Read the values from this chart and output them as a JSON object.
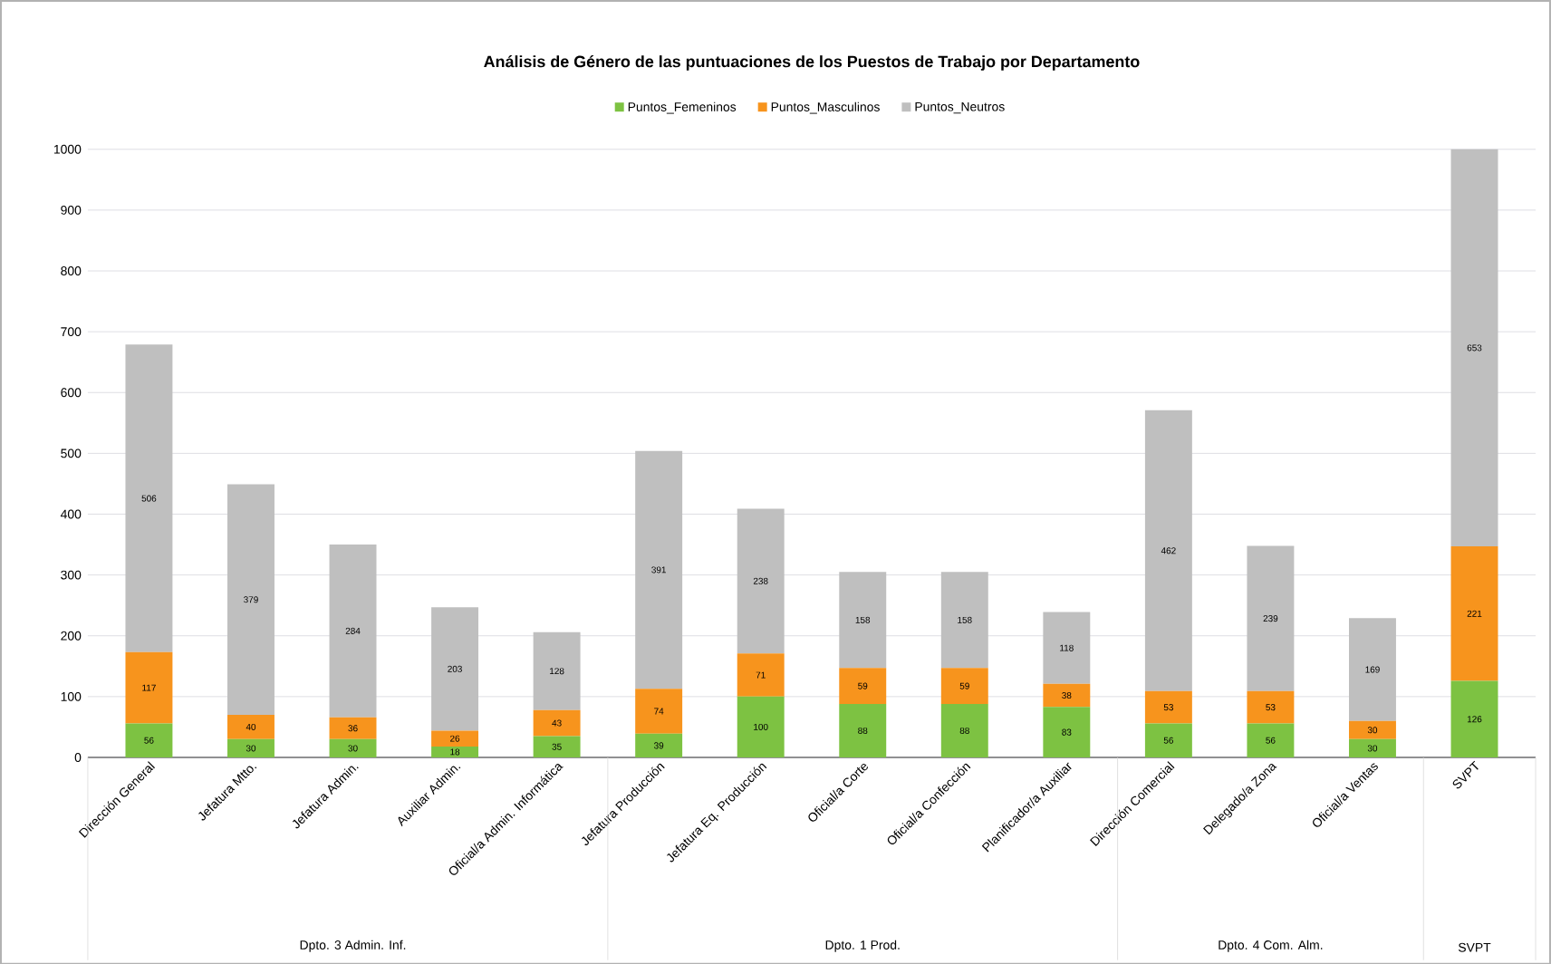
{
  "chart_data": {
    "type": "bar",
    "stacked": true,
    "title": "Análisis de Género de las puntuaciones de los Puestos de Trabajo por Departamento",
    "categories": [
      "Dirección General",
      "Jefatura Mtto.",
      "Jefatura Admin.",
      "Auxiliar Admin.",
      "Oficial/a Admin. Informática",
      "Jefatura Producción",
      "Jefatura Eq. Producción",
      "Oficial/a Corte",
      "Oficial/a Confección",
      "Planificador/a Auxiliar",
      "Dirección Comercial",
      "Delegado/a Zona",
      "Oficial/a Ventas",
      "SVPT"
    ],
    "series": [
      {
        "name": "Puntos_Femeninos",
        "color": "#7dc242",
        "values": [
          56,
          30,
          30,
          18,
          35,
          39,
          100,
          88,
          88,
          83,
          56,
          56,
          30,
          126
        ]
      },
      {
        "name": "Puntos_Masculinos",
        "color": "#f7941d",
        "values": [
          117,
          40,
          36,
          26,
          43,
          74,
          71,
          59,
          59,
          38,
          53,
          53,
          30,
          221
        ]
      },
      {
        "name": "Puntos_Neutros",
        "color": "#bfbfbf",
        "values": [
          506,
          379,
          284,
          203,
          128,
          391,
          238,
          158,
          158,
          118,
          462,
          239,
          169,
          653
        ]
      }
    ],
    "ylim": [
      0,
      1000
    ],
    "yticks": [
      0,
      100,
      200,
      300,
      400,
      500,
      600,
      700,
      800,
      900,
      1000
    ],
    "grid": "y",
    "legend": "top",
    "data_labels": true,
    "annotations": [
      "Dpto. 3 Admin. Inf.",
      "Dpto. 1 Prod.",
      "Dpto. 4 Com. Alm.",
      "SVPT"
    ]
  }
}
